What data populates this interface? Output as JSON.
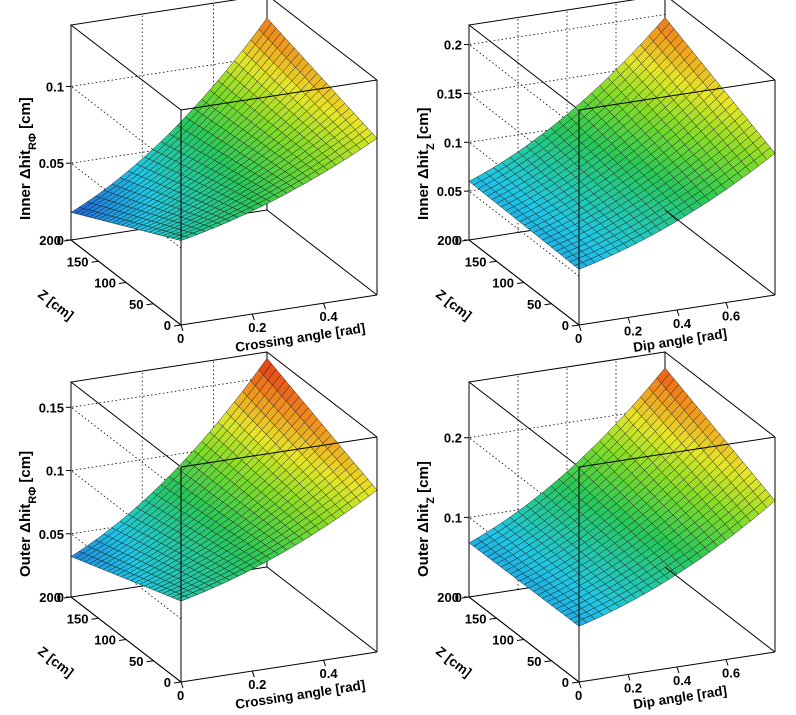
{
  "chart_data": [
    {
      "type": "surface",
      "title": "",
      "ztitle_parts": {
        "main": "Inner Δhit",
        "sub": "RΦ",
        "unit": " [cm]"
      },
      "xlabel": "Crossing angle [rad]",
      "ylabel": "Z [cm]",
      "xlim": [
        0,
        0.55
      ],
      "ylim": [
        0,
        200
      ],
      "zlim": [
        0,
        0.14
      ],
      "x_ticks": [
        "0",
        "0.2",
        "0.4"
      ],
      "x_tick_values": [
        0,
        0.2,
        0.4
      ],
      "y_ticks": [
        "0",
        "50",
        "100",
        "150",
        "200"
      ],
      "y_tick_values": [
        0,
        50,
        100,
        150,
        200
      ],
      "z_ticks": [
        "0",
        "0.05",
        "0.1"
      ],
      "z_tick_values": [
        0,
        0.05,
        0.1
      ],
      "corner_values": {
        "x0_y200": 0.018,
        "x0_y0": 0.055,
        "xmax_y200": 0.125,
        "xmax_y0": 0.102
      },
      "grid": true
    },
    {
      "type": "surface",
      "title": "",
      "ztitle_parts": {
        "main": "Inner Δhit",
        "sub": "Z",
        "unit": " [cm]"
      },
      "xlabel": "Dip angle [rad]",
      "ylabel": "Z [cm]",
      "xlim": [
        0,
        0.8
      ],
      "ylim": [
        0,
        200
      ],
      "zlim": [
        0,
        0.22
      ],
      "x_ticks": [
        "0",
        "0.2",
        "0.4",
        "0.6"
      ],
      "x_tick_values": [
        0,
        0.2,
        0.4,
        0.6
      ],
      "y_ticks": [
        "0",
        "50",
        "100",
        "150",
        "200"
      ],
      "y_tick_values": [
        0,
        50,
        100,
        150,
        200
      ],
      "z_ticks": [
        "0",
        "0.05",
        "0.1",
        "0.15",
        "0.2"
      ],
      "z_tick_values": [
        0,
        0.05,
        0.1,
        0.15,
        0.2
      ],
      "corner_values": {
        "x0_y200": 0.06,
        "x0_y0": 0.057,
        "xmax_y200": 0.197,
        "xmax_y0": 0.145
      },
      "grid": true
    },
    {
      "type": "surface",
      "title": "",
      "ztitle_parts": {
        "main": "Outer Δhit",
        "sub": "RΦ",
        "unit": " [cm]"
      },
      "xlabel": "Crossing angle [rad]",
      "ylabel": "Z [cm]",
      "xlim": [
        0,
        0.55
      ],
      "ylim": [
        0,
        200
      ],
      "zlim": [
        0,
        0.17
      ],
      "x_ticks": [
        "0",
        "0.2",
        "0.4"
      ],
      "x_tick_values": [
        0,
        0.2,
        0.4
      ],
      "y_ticks": [
        "0",
        "50",
        "100",
        "150",
        "200"
      ],
      "y_tick_values": [
        0,
        50,
        100,
        150,
        200
      ],
      "z_ticks": [
        "0",
        "0.05",
        "0.1",
        "0.15"
      ],
      "z_tick_values": [
        0,
        0.05,
        0.1,
        0.15
      ],
      "corner_values": {
        "x0_y200": 0.032,
        "x0_y0": 0.064,
        "xmax_y200": 0.165,
        "xmax_y0": 0.128
      },
      "grid": true
    },
    {
      "type": "surface",
      "title": "",
      "ztitle_parts": {
        "main": "Outer Δhit",
        "sub": "Z",
        "unit": " [cm]"
      },
      "xlabel": "Dip angle [rad]",
      "ylabel": "Z [cm]",
      "xlim": [
        0,
        0.8
      ],
      "ylim": [
        0,
        200
      ],
      "zlim": [
        0,
        0.27
      ],
      "x_ticks": [
        "0",
        "0.2",
        "0.4",
        "0.6"
      ],
      "x_tick_values": [
        0,
        0.2,
        0.4,
        0.6
      ],
      "y_ticks": [
        "0",
        "50",
        "100",
        "150",
        "200"
      ],
      "y_tick_values": [
        0,
        50,
        100,
        150,
        200
      ],
      "z_ticks": [
        "0",
        "0.1",
        "0.2"
      ],
      "z_tick_values": [
        0,
        0.1,
        0.2
      ],
      "corner_values": {
        "x0_y200": 0.068,
        "x0_y0": 0.07,
        "xmax_y200": 0.25,
        "xmax_y0": 0.19
      },
      "grid": true
    }
  ]
}
